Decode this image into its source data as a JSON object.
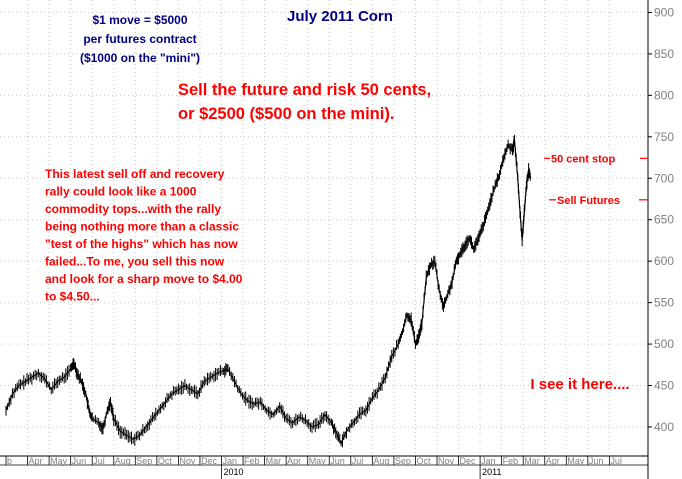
{
  "chart_data": {
    "type": "line",
    "title": "July 2011 Corn",
    "xlabel": "",
    "ylabel": "",
    "ylim": [
      365,
      915
    ],
    "grid": true,
    "yticks": [
      400,
      450,
      500,
      550,
      600,
      650,
      700,
      750,
      800,
      850,
      900
    ],
    "month_labels": [
      "b",
      "Apr",
      "May",
      "Jun",
      "Jul",
      "Aug",
      "Sep",
      "Oct",
      "Nov",
      "Dec",
      "Jan",
      "Feb",
      "Mar",
      "Apr",
      "May",
      "Jun",
      "Jul",
      "Aug",
      "Sep",
      "Oct",
      "Nov",
      "Dec",
      "Jan",
      "Feb",
      "Mar",
      "Apr",
      "May",
      "Jun",
      "Jul"
    ],
    "year_labels": [
      {
        "label": "2010",
        "month_index": 10
      },
      {
        "label": "2011",
        "month_index": 22
      }
    ],
    "series": [
      {
        "color": "#000000",
        "points": [
          [
            0.0,
            420
          ],
          [
            0.3,
            440
          ],
          [
            0.6,
            450
          ],
          [
            0.9,
            455
          ],
          [
            1.2,
            460
          ],
          [
            1.5,
            465
          ],
          [
            1.8,
            458
          ],
          [
            2.1,
            445
          ],
          [
            2.4,
            455
          ],
          [
            2.7,
            460
          ],
          [
            3.0,
            470
          ],
          [
            3.15,
            478
          ],
          [
            3.3,
            465
          ],
          [
            3.5,
            455
          ],
          [
            3.7,
            440
          ],
          [
            3.85,
            420
          ],
          [
            4.0,
            410
          ],
          [
            4.3,
            405
          ],
          [
            4.5,
            398
          ],
          [
            4.7,
            420
          ],
          [
            4.85,
            430
          ],
          [
            5.0,
            410
          ],
          [
            5.3,
            395
          ],
          [
            5.6,
            390
          ],
          [
            5.9,
            385
          ],
          [
            6.2,
            390
          ],
          [
            6.5,
            400
          ],
          [
            6.8,
            410
          ],
          [
            7.1,
            420
          ],
          [
            7.4,
            430
          ],
          [
            7.7,
            440
          ],
          [
            8.0,
            445
          ],
          [
            8.3,
            450
          ],
          [
            8.6,
            445
          ],
          [
            8.9,
            440
          ],
          [
            9.2,
            455
          ],
          [
            9.5,
            460
          ],
          [
            9.8,
            465
          ],
          [
            10.1,
            468
          ],
          [
            10.3,
            470
          ],
          [
            10.6,
            455
          ],
          [
            10.9,
            440
          ],
          [
            11.2,
            432
          ],
          [
            11.5,
            428
          ],
          [
            11.8,
            430
          ],
          [
            12.1,
            420
          ],
          [
            12.4,
            415
          ],
          [
            12.7,
            425
          ],
          [
            13.0,
            410
          ],
          [
            13.3,
            405
          ],
          [
            13.6,
            412
          ],
          [
            13.9,
            408
          ],
          [
            14.2,
            400
          ],
          [
            14.5,
            403
          ],
          [
            14.8,
            415
          ],
          [
            15.1,
            405
          ],
          [
            15.3,
            395
          ],
          [
            15.55,
            380
          ],
          [
            15.8,
            395
          ],
          [
            16.1,
            405
          ],
          [
            16.4,
            415
          ],
          [
            16.7,
            420
          ],
          [
            17.0,
            435
          ],
          [
            17.3,
            445
          ],
          [
            17.6,
            460
          ],
          [
            17.9,
            485
          ],
          [
            18.2,
            500
          ],
          [
            18.4,
            515
          ],
          [
            18.6,
            535
          ],
          [
            18.8,
            530
          ],
          [
            19.0,
            500
          ],
          [
            19.15,
            510
          ],
          [
            19.3,
            525
          ],
          [
            19.5,
            580
          ],
          [
            19.7,
            595
          ],
          [
            19.9,
            600
          ],
          [
            20.1,
            565
          ],
          [
            20.3,
            545
          ],
          [
            20.5,
            560
          ],
          [
            20.7,
            575
          ],
          [
            20.9,
            600
          ],
          [
            21.1,
            610
          ],
          [
            21.3,
            620
          ],
          [
            21.5,
            628
          ],
          [
            21.7,
            615
          ],
          [
            21.9,
            625
          ],
          [
            22.1,
            640
          ],
          [
            22.3,
            655
          ],
          [
            22.5,
            675
          ],
          [
            22.7,
            690
          ],
          [
            22.9,
            705
          ],
          [
            23.1,
            725
          ],
          [
            23.3,
            740
          ],
          [
            23.5,
            735
          ],
          [
            23.6,
            745
          ],
          [
            23.75,
            700
          ],
          [
            23.85,
            660
          ],
          [
            23.95,
            625
          ],
          [
            24.05,
            660
          ],
          [
            24.15,
            690
          ],
          [
            24.25,
            710
          ],
          [
            24.35,
            700
          ]
        ]
      }
    ],
    "annotations": {
      "contract_note": [
        "$1 move = $5000",
        "per futures contract",
        "($1000 on the \"mini\")"
      ],
      "headline": [
        "Sell the future and risk 50 cents,",
        "or $2500 ($500 on the mini)."
      ],
      "commentary": [
        "This latest sell off and recovery",
        "rally could look like a 1000",
        "commodity tops...with the rally",
        "being nothing more than a classic",
        "\"test of the highs\" which has now",
        "failed...To me, you sell this now",
        "and look for a sharp move to $4.00",
        "to $4.50..."
      ],
      "stop_label": "50 cent stop",
      "stop_price": 724,
      "entry_label": "Sell Futures",
      "entry_price": 674,
      "footer_note": "I see it here....",
      "footer_price": 453
    },
    "colors": {
      "background": "#ffffff",
      "grid": "#c8c8c8",
      "price": "#000000",
      "title": "#000080",
      "note": "#000080",
      "annotation": "#ff0000",
      "axis_text": "#808080",
      "year_text": "#000000"
    }
  }
}
